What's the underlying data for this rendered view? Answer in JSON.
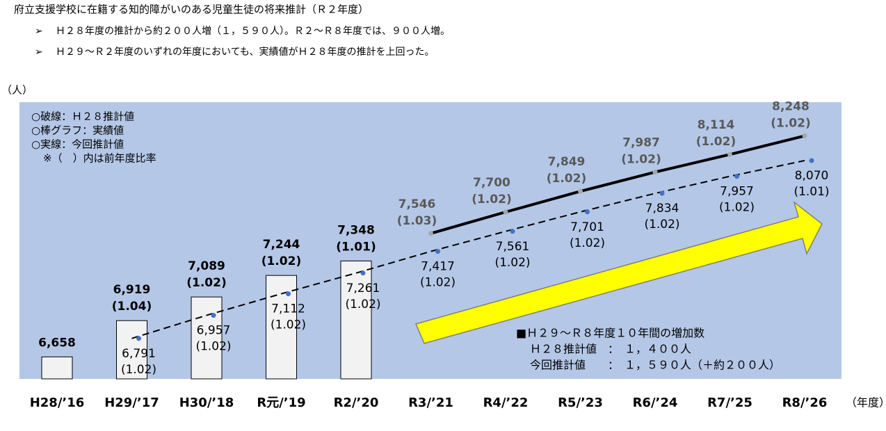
{
  "document": {
    "title": "府立支援学校に在籍する知的障がいのある児童生徒の将来推計（Ｒ２年度）",
    "bullets": [
      "Ｈ２８年度の推計から約２００人増（１，５９０人）。Ｒ２～Ｒ８年度では、９００人増。",
      "Ｈ２９～Ｒ２年度のいずれの年度においても、実績値がＨ２８年度の推計を上回った。"
    ]
  },
  "chart_data": {
    "type": "bar",
    "y_label": "（人）",
    "x_label": "（年度）",
    "categories": [
      "H28/’16",
      "H29/’17",
      "H30/’18",
      "R元/’19",
      "R2/’20",
      "R3/’21",
      "R4/’22",
      "R5/’23",
      "R6/’24",
      "R7/’25",
      "R8/’26"
    ],
    "ylim": [
      6500,
      8490
    ],
    "series": [
      {
        "type": "bar",
        "color": "#f2f2f2",
        "values": [
          6658,
          6919,
          7089,
          7244,
          7348,
          null,
          null,
          null,
          null,
          null,
          null
        ],
        "value_labels": [
          "6,658",
          "6,919",
          "7,089",
          "7,244",
          "7,348",
          null,
          null,
          null,
          null,
          null,
          null
        ],
        "ratios": [
          null,
          "(1.04)",
          "(1.02)",
          "(1.02)",
          "(1.01)",
          null,
          null,
          null,
          null,
          null,
          null
        ]
      },
      {
        "type": "line",
        "style": "dashed",
        "color": "#000000",
        "marker_color": "#4472c4",
        "values": [
          null,
          6791,
          6957,
          7112,
          7261,
          7417,
          7561,
          7701,
          7834,
          7957,
          8070
        ],
        "value_labels": [
          null,
          "6,791",
          "6,957",
          "7,112",
          "7,261",
          "7,417",
          "7,561",
          "7,701",
          "7,834",
          "7,957",
          "8,070"
        ],
        "ratios": [
          null,
          "(1.02)",
          "(1.02)",
          "(1.02)",
          "(1.02)",
          "(1.02)",
          "(1.02)",
          "(1.02)",
          "(1.02)",
          "(1.02)",
          "(1.01)"
        ]
      },
      {
        "type": "line",
        "style": "solid",
        "color": "#000000",
        "marker_color": "#a6a6a6",
        "values": [
          null,
          null,
          null,
          null,
          null,
          7546,
          7700,
          7849,
          7987,
          8114,
          8248
        ],
        "value_labels": [
          null,
          null,
          null,
          null,
          null,
          "7,546",
          "7,700",
          "7,849",
          "7,987",
          "8,114",
          "8,248"
        ],
        "ratios": [
          null,
          null,
          null,
          null,
          null,
          "(1.03)",
          "(1.02)",
          "(1.02)",
          "(1.02)",
          "(1.02)",
          "(1.02)"
        ]
      }
    ],
    "legend_notes": [
      "○破線：Ｈ２８推計値",
      "○棒グラフ：実績値",
      "○実線：今回推計値",
      "※（　）内は前年度比率"
    ],
    "summary": [
      "■Ｈ２９～Ｒ８年度１０年間の増加数",
      "Ｈ２８推計値　：　１，４００人",
      "今回推計値　　：　１，５９０人（＋約２００人）"
    ]
  }
}
